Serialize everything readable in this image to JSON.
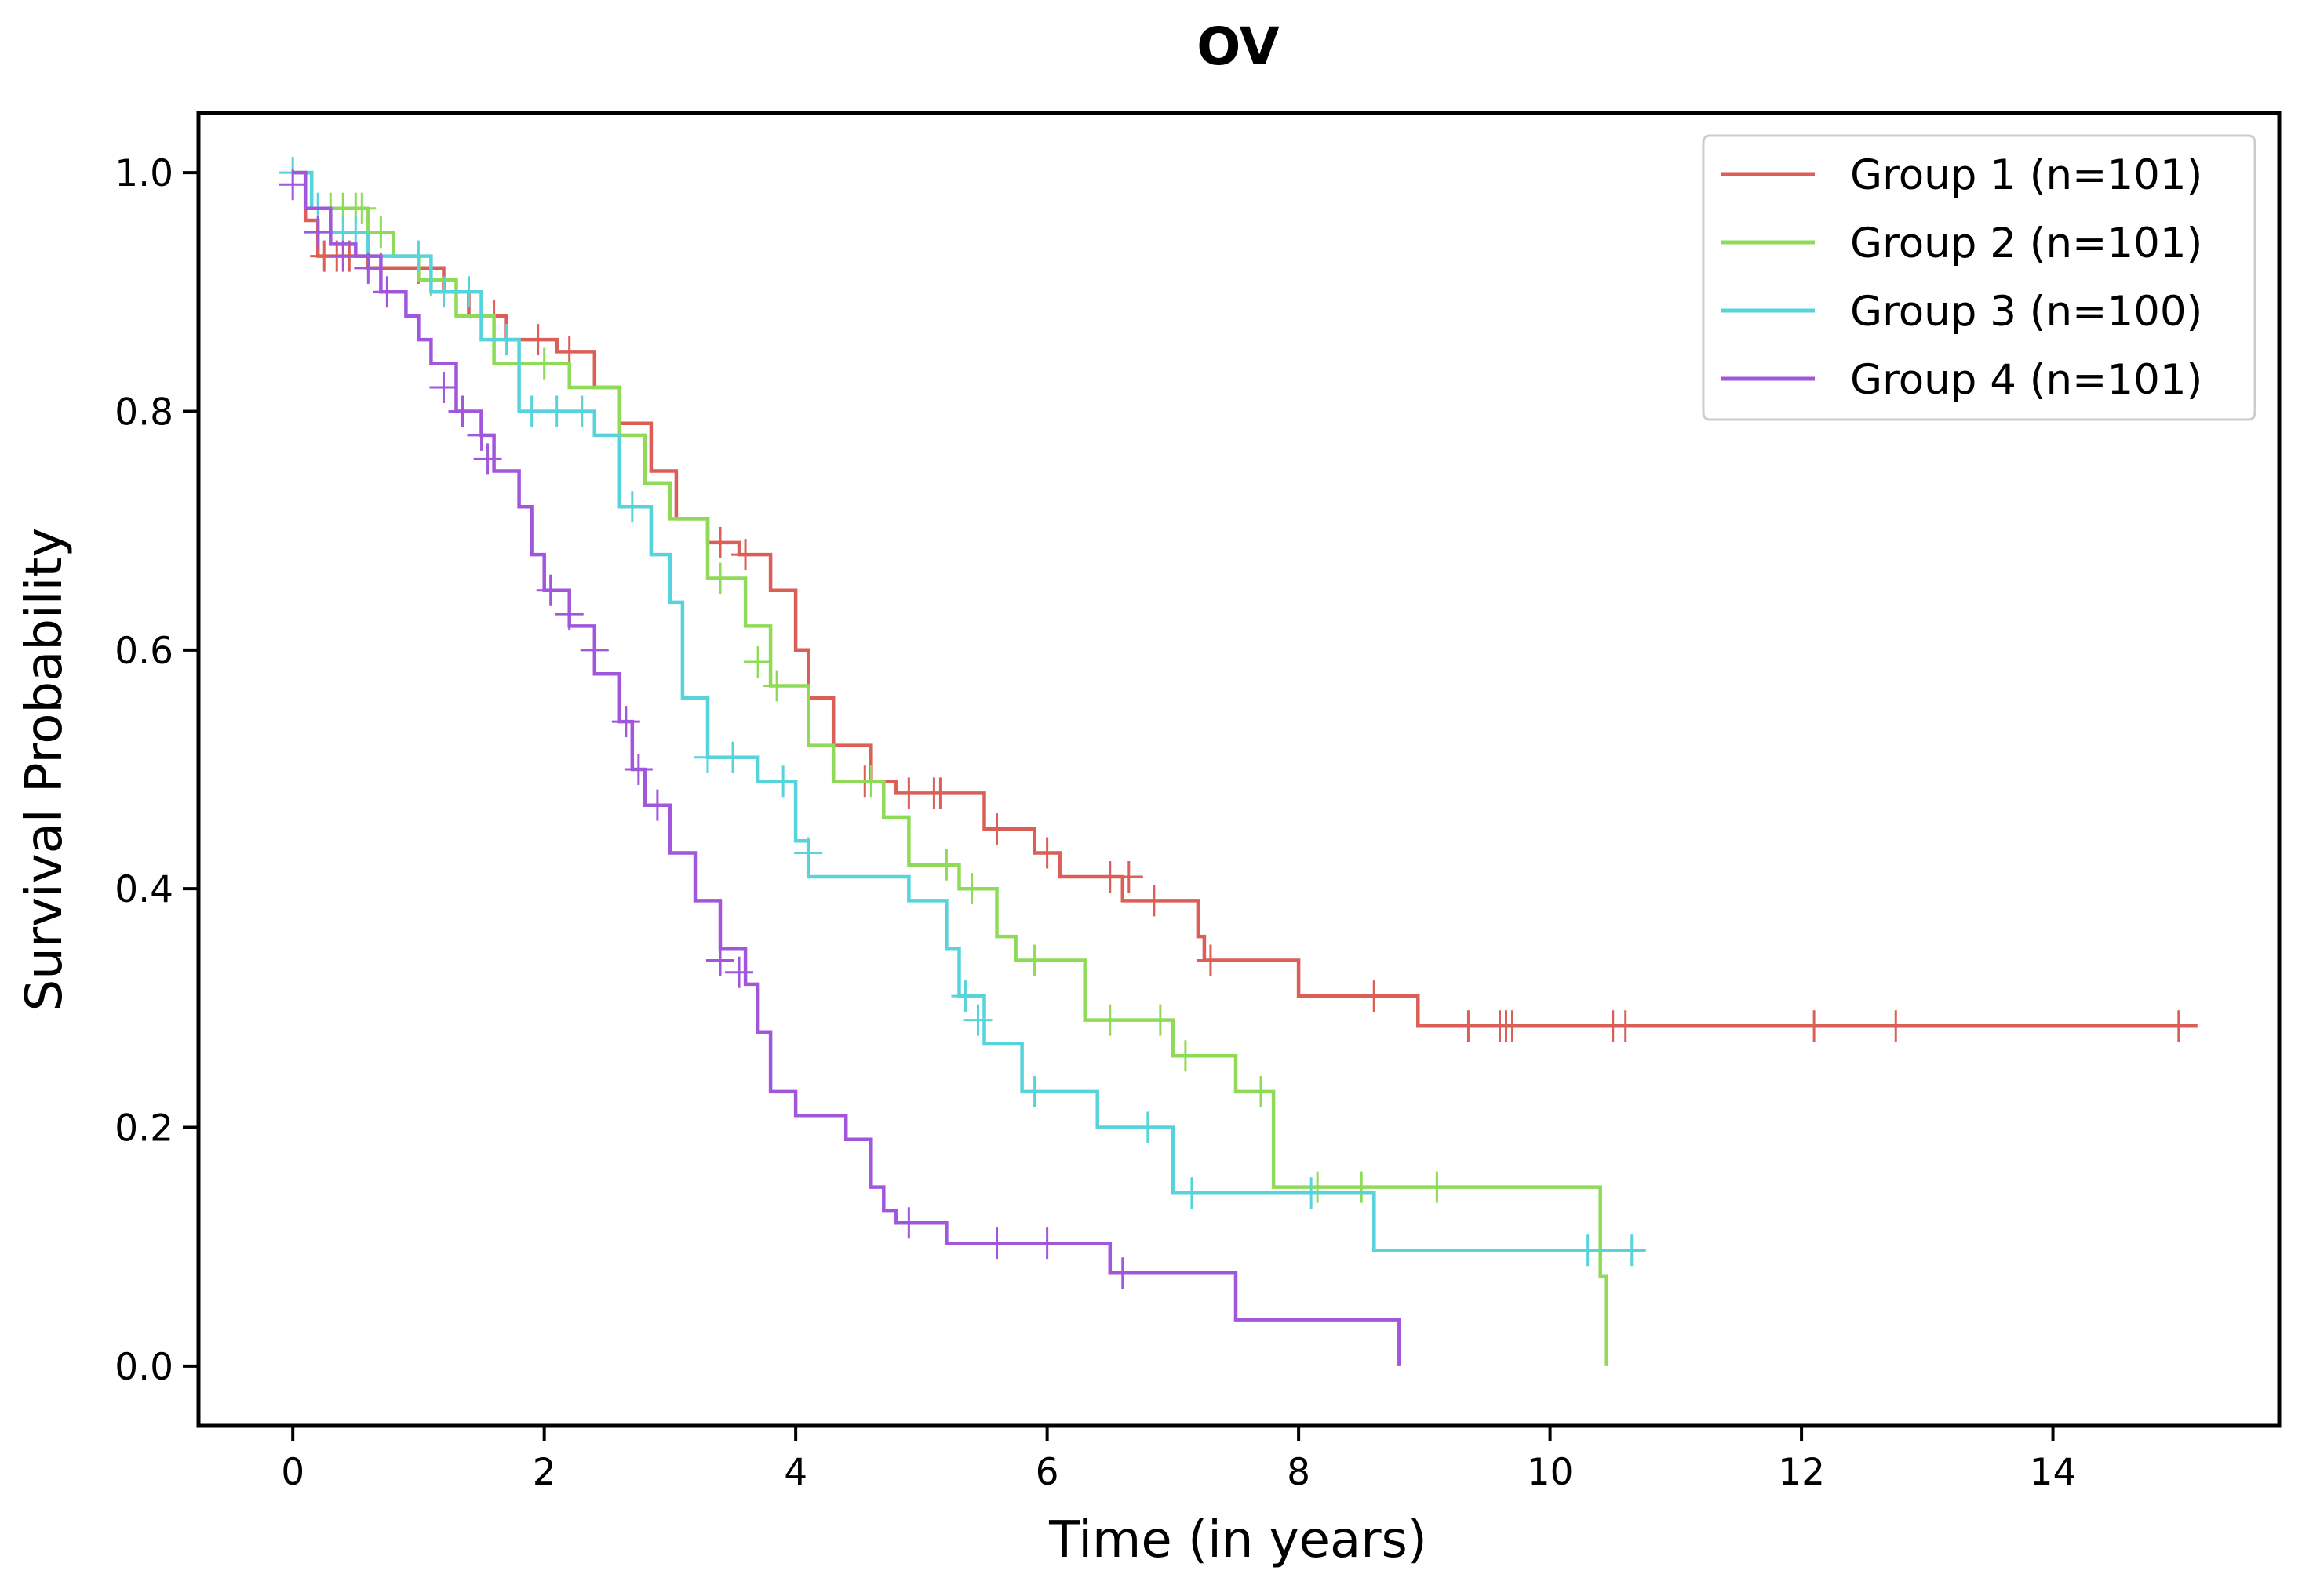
{
  "chart_data": {
    "type": "line",
    "subtype": "kaplan-meier",
    "title": "OV",
    "xlabel": "Time (in years)",
    "ylabel": "Survival Probability",
    "xlim": [
      -0.75,
      15.8
    ],
    "ylim": [
      -0.05,
      1.05
    ],
    "xticks": [
      0,
      2,
      4,
      6,
      8,
      10,
      12,
      14
    ],
    "yticks": [
      0.0,
      0.2,
      0.4,
      0.6,
      0.8,
      1.0
    ],
    "xtick_labels": [
      "0",
      "2",
      "4",
      "6",
      "8",
      "10",
      "12",
      "14"
    ],
    "ytick_labels": [
      "0.0",
      "0.2",
      "0.4",
      "0.6",
      "0.8",
      "1.0"
    ],
    "grid": false,
    "legend_position": "top-right",
    "series": [
      {
        "name": "Group 1 (n=101)",
        "color": "#db5f57",
        "steps": [
          [
            0,
            1.0
          ],
          [
            0.1,
            0.96
          ],
          [
            0.2,
            0.93
          ],
          [
            0.5,
            0.93
          ],
          [
            0.6,
            0.92
          ],
          [
            1.2,
            0.9
          ],
          [
            1.4,
            0.88
          ],
          [
            1.7,
            0.86
          ],
          [
            2.1,
            0.85
          ],
          [
            2.4,
            0.82
          ],
          [
            2.6,
            0.79
          ],
          [
            2.85,
            0.75
          ],
          [
            3.05,
            0.71
          ],
          [
            3.3,
            0.69
          ],
          [
            3.55,
            0.68
          ],
          [
            3.8,
            0.65
          ],
          [
            4.0,
            0.6
          ],
          [
            4.1,
            0.56
          ],
          [
            4.3,
            0.52
          ],
          [
            4.6,
            0.49
          ],
          [
            4.8,
            0.48
          ],
          [
            5.5,
            0.45
          ],
          [
            5.9,
            0.43
          ],
          [
            6.1,
            0.41
          ],
          [
            6.6,
            0.39
          ],
          [
            7.2,
            0.36
          ],
          [
            7.25,
            0.34
          ],
          [
            8.0,
            0.31
          ],
          [
            8.95,
            0.285
          ],
          [
            15.15,
            0.285
          ]
        ],
        "censored": [
          [
            0.25,
            0.93
          ],
          [
            0.35,
            0.93
          ],
          [
            0.45,
            0.93
          ],
          [
            0.7,
            0.92
          ],
          [
            1.0,
            0.92
          ],
          [
            1.6,
            0.88
          ],
          [
            1.95,
            0.86
          ],
          [
            2.2,
            0.85
          ],
          [
            3.4,
            0.69
          ],
          [
            3.6,
            0.68
          ],
          [
            4.55,
            0.49
          ],
          [
            4.9,
            0.48
          ],
          [
            5.1,
            0.48
          ],
          [
            5.15,
            0.48
          ],
          [
            5.6,
            0.45
          ],
          [
            6.0,
            0.43
          ],
          [
            6.5,
            0.41
          ],
          [
            6.65,
            0.41
          ],
          [
            6.85,
            0.39
          ],
          [
            7.3,
            0.34
          ],
          [
            8.6,
            0.31
          ],
          [
            9.35,
            0.285
          ],
          [
            9.6,
            0.285
          ],
          [
            9.65,
            0.285
          ],
          [
            9.7,
            0.285
          ],
          [
            10.5,
            0.285
          ],
          [
            10.6,
            0.285
          ],
          [
            12.1,
            0.285
          ],
          [
            12.75,
            0.285
          ],
          [
            15.0,
            0.285
          ]
        ]
      },
      {
        "name": "Group 2 (n=101)",
        "color": "#8fdb57",
        "steps": [
          [
            0,
            1.0
          ],
          [
            0.15,
            0.97
          ],
          [
            0.6,
            0.95
          ],
          [
            0.8,
            0.93
          ],
          [
            1.0,
            0.91
          ],
          [
            1.3,
            0.88
          ],
          [
            1.6,
            0.84
          ],
          [
            2.2,
            0.82
          ],
          [
            2.6,
            0.78
          ],
          [
            2.8,
            0.74
          ],
          [
            3.0,
            0.71
          ],
          [
            3.3,
            0.66
          ],
          [
            3.6,
            0.62
          ],
          [
            3.8,
            0.57
          ],
          [
            4.1,
            0.52
          ],
          [
            4.3,
            0.49
          ],
          [
            4.7,
            0.46
          ],
          [
            4.9,
            0.42
          ],
          [
            5.3,
            0.4
          ],
          [
            5.6,
            0.36
          ],
          [
            5.75,
            0.34
          ],
          [
            6.3,
            0.29
          ],
          [
            7.0,
            0.26
          ],
          [
            7.5,
            0.23
          ],
          [
            7.8,
            0.15
          ],
          [
            10.4,
            0.075
          ],
          [
            10.45,
            0.0
          ]
        ],
        "censored": [
          [
            0.3,
            0.97
          ],
          [
            0.4,
            0.97
          ],
          [
            0.5,
            0.97
          ],
          [
            0.55,
            0.97
          ],
          [
            0.7,
            0.95
          ],
          [
            1.1,
            0.91
          ],
          [
            1.5,
            0.88
          ],
          [
            2.0,
            0.84
          ],
          [
            3.4,
            0.66
          ],
          [
            3.7,
            0.59
          ],
          [
            3.85,
            0.57
          ],
          [
            4.6,
            0.49
          ],
          [
            5.2,
            0.42
          ],
          [
            5.4,
            0.4
          ],
          [
            5.9,
            0.34
          ],
          [
            6.5,
            0.29
          ],
          [
            6.9,
            0.29
          ],
          [
            7.1,
            0.26
          ],
          [
            7.7,
            0.23
          ],
          [
            8.15,
            0.15
          ],
          [
            8.5,
            0.15
          ],
          [
            9.1,
            0.15
          ]
        ]
      },
      {
        "name": "Group 3 (n=100)",
        "color": "#57d3db",
        "steps": [
          [
            0,
            1.0
          ],
          [
            0.15,
            0.97
          ],
          [
            0.3,
            0.95
          ],
          [
            0.6,
            0.93
          ],
          [
            1.1,
            0.9
          ],
          [
            1.5,
            0.86
          ],
          [
            1.8,
            0.8
          ],
          [
            2.4,
            0.78
          ],
          [
            2.6,
            0.72
          ],
          [
            2.85,
            0.68
          ],
          [
            3.0,
            0.64
          ],
          [
            3.1,
            0.56
          ],
          [
            3.3,
            0.51
          ],
          [
            3.7,
            0.49
          ],
          [
            4.0,
            0.44
          ],
          [
            4.1,
            0.41
          ],
          [
            4.9,
            0.39
          ],
          [
            5.2,
            0.35
          ],
          [
            5.3,
            0.31
          ],
          [
            5.5,
            0.27
          ],
          [
            5.8,
            0.23
          ],
          [
            6.4,
            0.2
          ],
          [
            7.0,
            0.145
          ],
          [
            8.6,
            0.097
          ],
          [
            10.75,
            0.097
          ]
        ],
        "censored": [
          [
            0.0,
            1.0
          ],
          [
            0.2,
            0.97
          ],
          [
            0.4,
            0.95
          ],
          [
            0.5,
            0.95
          ],
          [
            1.0,
            0.93
          ],
          [
            1.2,
            0.9
          ],
          [
            1.4,
            0.9
          ],
          [
            1.7,
            0.86
          ],
          [
            1.9,
            0.8
          ],
          [
            2.1,
            0.8
          ],
          [
            2.3,
            0.8
          ],
          [
            2.7,
            0.72
          ],
          [
            3.3,
            0.51
          ],
          [
            3.5,
            0.51
          ],
          [
            3.9,
            0.49
          ],
          [
            4.1,
            0.43
          ],
          [
            5.35,
            0.31
          ],
          [
            5.45,
            0.29
          ],
          [
            5.9,
            0.23
          ],
          [
            6.8,
            0.2
          ],
          [
            7.15,
            0.145
          ],
          [
            8.1,
            0.145
          ],
          [
            10.3,
            0.097
          ],
          [
            10.65,
            0.097
          ]
        ]
      },
      {
        "name": "Group 4 (n=101)",
        "color": "#a157db",
        "steps": [
          [
            0,
            1.0
          ],
          [
            0.1,
            0.97
          ],
          [
            0.3,
            0.94
          ],
          [
            0.5,
            0.93
          ],
          [
            0.7,
            0.9
          ],
          [
            0.9,
            0.88
          ],
          [
            1.0,
            0.86
          ],
          [
            1.1,
            0.84
          ],
          [
            1.3,
            0.8
          ],
          [
            1.5,
            0.78
          ],
          [
            1.6,
            0.75
          ],
          [
            1.8,
            0.72
          ],
          [
            1.9,
            0.68
          ],
          [
            2.0,
            0.65
          ],
          [
            2.2,
            0.62
          ],
          [
            2.4,
            0.58
          ],
          [
            2.6,
            0.54
          ],
          [
            2.7,
            0.5
          ],
          [
            2.8,
            0.47
          ],
          [
            3.0,
            0.43
          ],
          [
            3.2,
            0.39
          ],
          [
            3.4,
            0.35
          ],
          [
            3.6,
            0.32
          ],
          [
            3.7,
            0.28
          ],
          [
            3.8,
            0.23
          ],
          [
            4.0,
            0.21
          ],
          [
            4.4,
            0.19
          ],
          [
            4.6,
            0.15
          ],
          [
            4.7,
            0.13
          ],
          [
            4.8,
            0.12
          ],
          [
            5.2,
            0.103
          ],
          [
            6.5,
            0.078
          ],
          [
            7.5,
            0.039
          ],
          [
            8.8,
            0.0
          ]
        ],
        "censored": [
          [
            0.0,
            0.99
          ],
          [
            0.2,
            0.95
          ],
          [
            0.4,
            0.93
          ],
          [
            0.6,
            0.92
          ],
          [
            0.75,
            0.9
          ],
          [
            1.2,
            0.82
          ],
          [
            1.35,
            0.8
          ],
          [
            1.5,
            0.78
          ],
          [
            1.55,
            0.76
          ],
          [
            2.05,
            0.65
          ],
          [
            2.2,
            0.63
          ],
          [
            2.4,
            0.6
          ],
          [
            2.65,
            0.54
          ],
          [
            2.75,
            0.5
          ],
          [
            2.9,
            0.47
          ],
          [
            3.4,
            0.34
          ],
          [
            3.55,
            0.33
          ],
          [
            4.9,
            0.12
          ],
          [
            5.6,
            0.103
          ],
          [
            6.0,
            0.103
          ],
          [
            6.6,
            0.078
          ]
        ]
      }
    ]
  }
}
